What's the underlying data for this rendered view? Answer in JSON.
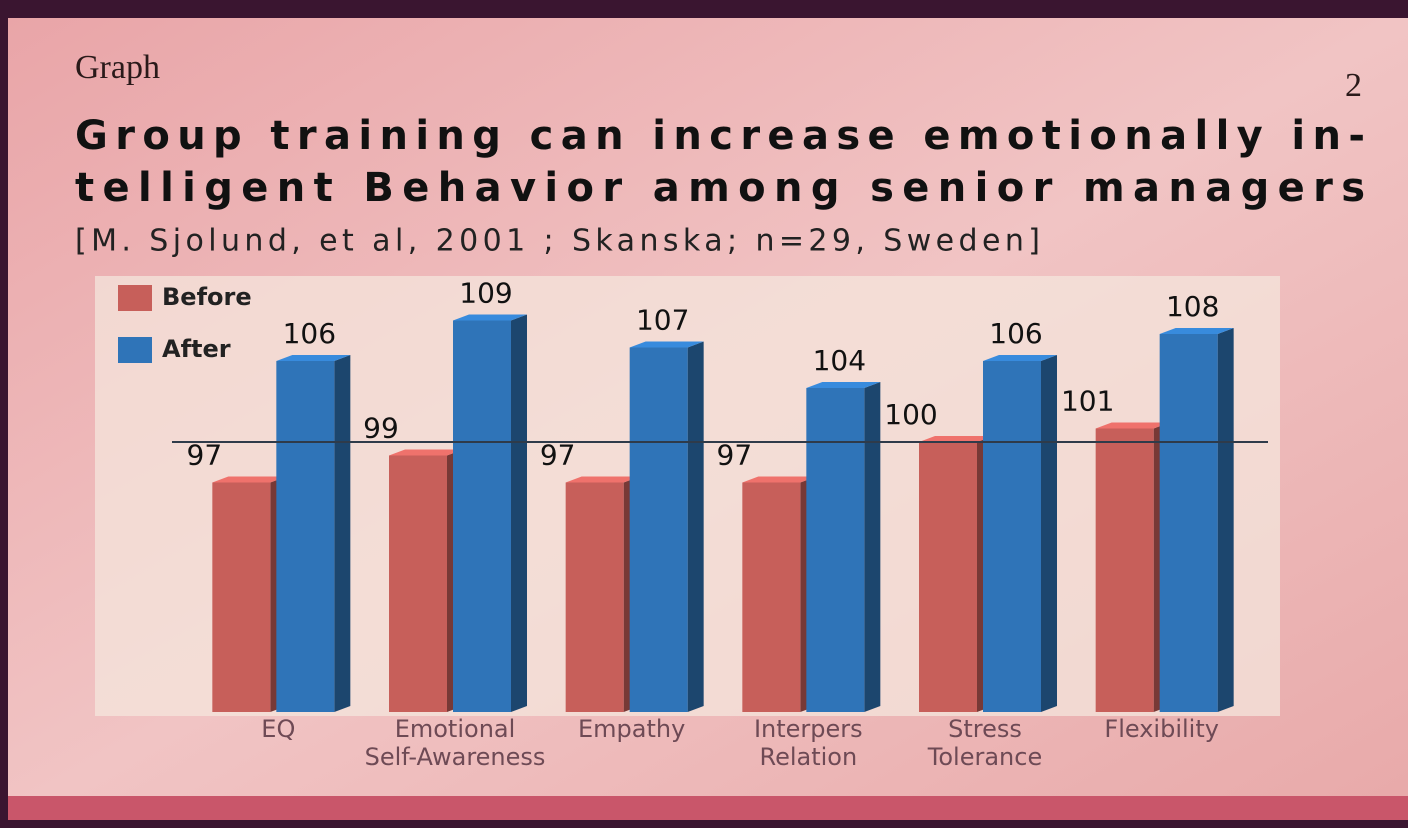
{
  "chart_data": {
    "type": "bar",
    "heading": "Graph",
    "page_number": "2",
    "title_lines": [
      "Group training can increase emotionally in-",
      "telligent Behavior among senior managers"
    ],
    "subtitle": "[M. Sjolund, et al, 2001 ; Skanska; n=29, Sweden]",
    "categories": [
      "EQ",
      "Emotional Self-Awareness",
      "Empathy",
      "Interpers Relation",
      "Stress Tolerance",
      "Flexibility"
    ],
    "series": [
      {
        "name": "Before",
        "color": "#c75f5a",
        "values": [
          97,
          99,
          97,
          97,
          100,
          101
        ]
      },
      {
        "name": "After",
        "color": "#2f74b8",
        "values": [
          106,
          109,
          107,
          104,
          106,
          108
        ]
      }
    ],
    "ylim": [
      80,
      112
    ],
    "reference_line": 100,
    "legend": "top-left"
  }
}
